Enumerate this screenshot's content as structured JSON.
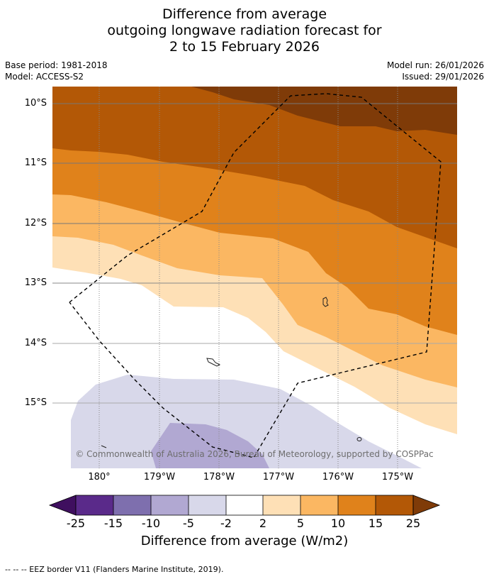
{
  "title": {
    "line1": "Difference from average",
    "line2": "outgoing longwave radiation forecast for",
    "line3": "2 to 15 February 2026"
  },
  "meta": {
    "base_period": "Base period: 1981-2018",
    "model": "Model: ACCESS-S2",
    "model_run": "Model run: 26/01/2026",
    "issued": "Issued: 29/01/2026"
  },
  "axes": {
    "lat_labels": [
      "10°S",
      "11°S",
      "12°S",
      "13°S",
      "14°S",
      "15°S"
    ],
    "lon_labels": [
      "180°",
      "179°W",
      "178°W",
      "177°W",
      "176°W",
      "175°W"
    ]
  },
  "copyright": "© Commonwealth of Australia 2026, Bureau of Meteorology, supported by COSPPac",
  "colorbar": {
    "labels": [
      "-25",
      "-15",
      "-10",
      "-5",
      "-2",
      "2",
      "5",
      "10",
      "15",
      "25"
    ],
    "colors": [
      "#3f0f5f",
      "#5a2a8a",
      "#7e6fae",
      "#b1a8d2",
      "#d8d8ea",
      "#ffffff",
      "#fee0b6",
      "#fbb762",
      "#e0821b",
      "#b35806",
      "#7f3b08"
    ],
    "title": "Difference from average (W/m2)"
  },
  "footnote": "--  --  -- EEZ border V11 (Flanders Marine Institute, 2019)."
}
